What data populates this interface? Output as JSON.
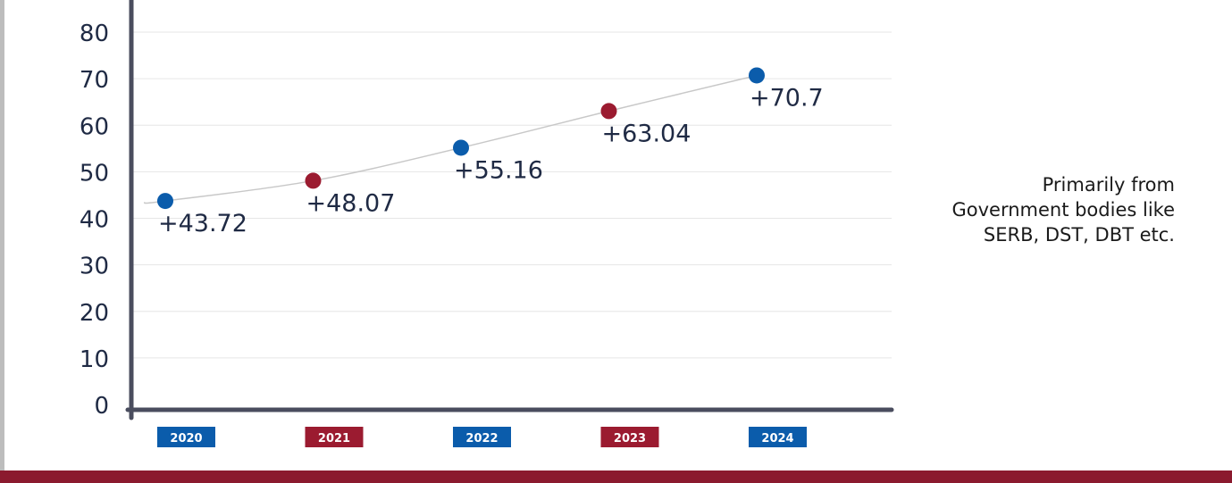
{
  "chart_data": {
    "type": "line",
    "title": "",
    "xlabel": "",
    "ylabel": "",
    "ylim": [
      0,
      80
    ],
    "y_ticks": [
      "0",
      "10",
      "20",
      "30",
      "40",
      "50",
      "60",
      "70",
      "80"
    ],
    "grid": true,
    "categories": [
      "2020",
      "2021",
      "2022",
      "2023",
      "2024"
    ],
    "values": [
      43.72,
      48.07,
      55.16,
      63.04,
      70.7
    ],
    "data_labels": [
      "+43.72",
      "+48.07",
      "+55.16",
      "+63.04",
      "+70.7"
    ],
    "point_colors": [
      "#0b5cab",
      "#9b1b30",
      "#0b5cab",
      "#9b1b30",
      "#0b5cab"
    ]
  },
  "note": {
    "lines": [
      "Primarily from",
      "Government bodies like",
      "SERB, DST, DBT etc."
    ]
  },
  "colors": {
    "blue": "#0b5cab",
    "maroon": "#9b1b30",
    "axis": "#4a4d5e",
    "text": "#1f2a44",
    "grid": "#e6e6e6",
    "curve": "#c8c8c8",
    "bottom_bar": "#8b1a2e"
  }
}
